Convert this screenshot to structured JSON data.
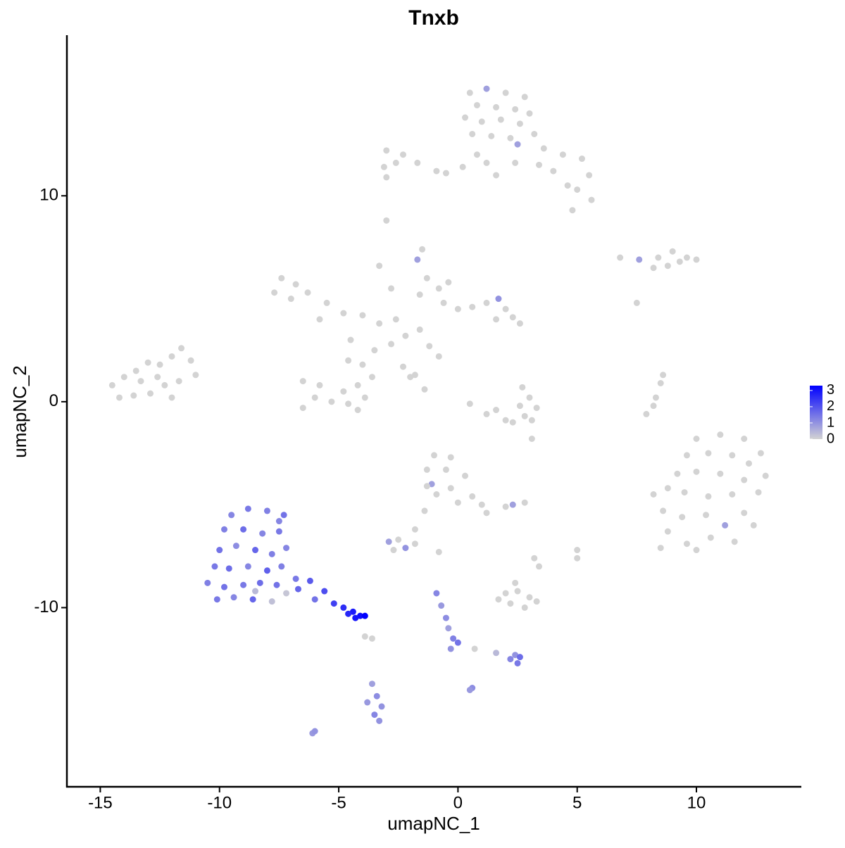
{
  "chart_data": {
    "type": "scatter",
    "title": "Tnxb",
    "x_label": "umapNC_1",
    "y_label": "umapNC_2",
    "xlim": [
      -16.4,
      14.4
    ],
    "ylim": [
      -18.7,
      17.8
    ],
    "xticks": [
      -15,
      -10,
      -5,
      0,
      5,
      10
    ],
    "yticks": [
      -10,
      0,
      10
    ],
    "color_low": "#d3d3d3",
    "color_high": "#0000ff",
    "colorlim": [
      0,
      3.3
    ],
    "colorticks": [
      0,
      1,
      2,
      3
    ],
    "x": [
      0.5,
      1.2,
      2,
      2.8,
      0.8,
      1.6,
      2.4,
      3,
      0.3,
      1,
      1.8,
      2.6,
      0.6,
      1.4,
      2.2,
      3.2,
      3.6,
      4.4,
      5.2,
      5.5,
      5,
      5.6,
      4.6,
      4,
      3.4,
      4.8,
      0.8,
      0.2,
      -0.5,
      1.2,
      1.6,
      2.4,
      2.5,
      -3,
      -2.3,
      -3.1,
      -2.6,
      -1.7,
      -0.9,
      -3,
      -3,
      -1.5,
      -1.7,
      6.8,
      7.6,
      8.4,
      9,
      9.6,
      10,
      8.8,
      9.3,
      8.2,
      -7.4,
      -6.8,
      -7.7,
      -7,
      -6.3,
      -5.5,
      -4.8,
      -5.8,
      -4,
      -3.3,
      -2.6,
      -1.3,
      -0.8,
      -1.6,
      -0.6,
      0,
      0.6,
      1.2,
      1.7,
      2,
      2.3,
      2.6,
      1.6,
      -0.4,
      -2.8,
      -3.3,
      -4.5,
      -4.6,
      -4,
      -3.5,
      -2.8,
      -2.2,
      -1.6,
      -1.2,
      -0.8,
      -2,
      -6.5,
      -5.8,
      -6,
      -5.3,
      -6.5,
      -4.8,
      -4.2,
      -3.9,
      -4.6,
      -3.6,
      -4.2,
      -1.4,
      -1.8,
      -2.3,
      0.5,
      1.2,
      2,
      2.8,
      3.3,
      3,
      2.6,
      1.6,
      3.1,
      2.3,
      3.1,
      2.7,
      -14.5,
      -14,
      -13.5,
      -13,
      -12.5,
      -12,
      -11.6,
      -11,
      -11.7,
      -12.3,
      -12.9,
      -13.6,
      -14.2,
      -13.3,
      -12.6,
      -11.2,
      -12,
      8.5,
      8.3,
      7.9,
      8.2,
      7.5,
      8.6,
      10,
      11,
      12,
      12.7,
      9.6,
      10.5,
      11.5,
      12.2,
      9.2,
      10,
      11,
      12,
      12.9,
      8.2,
      8.8,
      9.5,
      10.5,
      11.5,
      12.6,
      8.6,
      9.4,
      10.4,
      11.2,
      12,
      12.4,
      8.8,
      9.6,
      10.6,
      11.6,
      8.5,
      10,
      -1,
      -0.3,
      -1.3,
      -0.5,
      -1.1,
      -0.3,
      0.3,
      0.6,
      1,
      1.2,
      -0.9,
      0,
      -1.3,
      -1.4,
      -1.8,
      2.3,
      2.8,
      2,
      -2.9,
      -2.5,
      -2.2,
      -2.7,
      -1.8,
      -0.8,
      3.2,
      5,
      5,
      3.4,
      2,
      2.5,
      3,
      2.2,
      2.8,
      1.7,
      2.4,
      3.3,
      -9.5,
      -8.8,
      -8,
      -7.3,
      -9.8,
      -9,
      -8.2,
      -7.5,
      -10,
      -9.3,
      -8.5,
      -7.8,
      -7.2,
      -10.2,
      -9.6,
      -8.8,
      -8,
      -7.4,
      -10.5,
      -9.8,
      -9,
      -8.3,
      -7.6,
      -10.1,
      -9.4,
      -8.6,
      -7.8,
      -7.2,
      -6.7,
      -6.2,
      -5.6,
      -5.2,
      -6,
      -4.8,
      -4.4,
      -4.1,
      -3.9,
      -4.3,
      -4.6,
      -7.5,
      -8.5,
      -6.8,
      -3.9,
      -3.6,
      -0.9,
      -0.7,
      -0.5,
      -0.4,
      -0.2,
      -0.3,
      0,
      0.7,
      1.6,
      2.2,
      2.5,
      2.4,
      2.6,
      -3.6,
      -3.4,
      -3.2,
      -3.5,
      -3.8,
      -3.3,
      0.6,
      0.5,
      -6.1,
      -6
    ],
    "y": [
      15,
      15.2,
      15,
      14.8,
      14.4,
      14.3,
      14.2,
      14,
      13.8,
      13.6,
      13.7,
      13.5,
      13,
      12.9,
      12.8,
      13,
      12.3,
      12,
      11.8,
      11,
      10.3,
      9.8,
      10.5,
      11.2,
      11.5,
      9.3,
      12,
      11.4,
      11.1,
      11.6,
      11,
      11.6,
      12.5,
      12.2,
      12,
      11.4,
      11.6,
      11.6,
      11.2,
      10.9,
      8.8,
      7.4,
      6.9,
      7,
      6.9,
      7,
      7.3,
      7,
      6.9,
      6.6,
      6.8,
      6.5,
      6,
      5.7,
      5.3,
      5,
      5.3,
      4.8,
      4.3,
      4,
      4.2,
      3.8,
      4,
      6,
      5.5,
      5.2,
      4.8,
      4.5,
      4.6,
      4.8,
      5,
      4.5,
      4.1,
      3.8,
      4,
      5.8,
      5.5,
      6.6,
      3,
      2,
      1.8,
      2.5,
      2.8,
      3.2,
      3.5,
      2.7,
      2.2,
      1.2,
      1,
      0.8,
      0.2,
      0,
      -0.3,
      0.5,
      0.8,
      0.2,
      -0.1,
      1.2,
      -0.4,
      0.6,
      1.3,
      1.7,
      -0.1,
      -0.6,
      -0.9,
      -0.7,
      -0.3,
      0.2,
      -0.2,
      -0.4,
      -0.9,
      -1,
      -1.8,
      0.7,
      0.8,
      1.2,
      1.5,
      1.9,
      1.8,
      2.2,
      2.6,
      1.3,
      1,
      0.8,
      0.4,
      0.3,
      0.2,
      1,
      1.2,
      2,
      0.2,
      0.9,
      0.2,
      -0.6,
      -0.2,
      4.8,
      1.3,
      -1.8,
      -1.6,
      -1.8,
      -2.5,
      -2.6,
      -2.5,
      -2.6,
      -3,
      -3.5,
      -3.4,
      -3.5,
      -3.8,
      -3.6,
      -4.5,
      -4.2,
      -4.4,
      -4.6,
      -4.5,
      -4.4,
      -5.3,
      -5.6,
      -5.5,
      -6,
      -5.4,
      -6,
      -6.3,
      -6.9,
      -6.6,
      -6.8,
      -7.1,
      -7.2,
      -2.6,
      -2.7,
      -3.3,
      -3.3,
      -4,
      -4.2,
      -3.6,
      -4.6,
      -5,
      -5.4,
      -4.5,
      -4.9,
      -4.1,
      -5.3,
      -6.2,
      -5,
      -4.9,
      -5.1,
      -6.8,
      -6.7,
      -7.1,
      -7.2,
      -6.9,
      -7.3,
      -7.6,
      -7.2,
      -7.6,
      -8,
      -9.3,
      -9.2,
      -9.5,
      -9.8,
      -10,
      -9.6,
      -8.8,
      -9.7,
      -5.5,
      -5.2,
      -5.3,
      -5.5,
      -6.2,
      -6.2,
      -6.4,
      -6.3,
      -7.2,
      -7,
      -7.2,
      -7.4,
      -7.1,
      -8,
      -8.1,
      -8,
      -8.2,
      -8,
      -8.8,
      -9,
      -8.9,
      -8.8,
      -8.9,
      -9.6,
      -9.5,
      -9.6,
      -9.7,
      -9.3,
      -9.1,
      -8.7,
      -9.2,
      -9.8,
      -9.6,
      -10,
      -10.2,
      -10.4,
      -10.4,
      -10.5,
      -10.3,
      -5.8,
      -9.2,
      -8.6,
      -11.4,
      -11.5,
      -9.3,
      -9.9,
      -10.5,
      -11,
      -11.5,
      -12,
      -11.7,
      -12,
      -12.2,
      -12.5,
      -12.7,
      -12.3,
      -12.4,
      -13.7,
      -14.3,
      -14.8,
      -15.2,
      -14.6,
      -15.5,
      -13.9,
      -14,
      -16.1,
      -16
    ],
    "values": [
      0,
      0.8,
      0,
      0,
      0,
      0,
      0,
      0,
      0,
      0,
      0,
      0,
      0,
      0,
      0,
      0,
      0,
      0,
      0,
      0,
      0,
      0,
      0,
      0,
      0,
      0,
      0,
      0,
      0,
      0,
      0,
      0,
      0.8,
      0,
      0,
      0,
      0,
      0,
      0,
      0,
      0,
      0,
      0.8,
      0,
      0.8,
      0,
      0,
      0,
      0,
      0,
      0,
      0,
      0,
      0,
      0,
      0,
      0,
      0,
      0,
      0,
      0,
      0,
      0,
      0,
      0,
      0,
      0,
      0,
      0,
      0,
      1,
      0,
      0,
      0,
      0,
      0,
      0,
      0,
      0,
      0,
      0,
      0,
      0,
      0,
      0,
      0,
      0,
      0,
      0,
      0,
      0,
      0,
      0,
      0,
      0,
      0,
      0,
      0,
      0,
      0,
      0,
      0,
      0,
      0,
      0,
      0,
      0,
      0,
      0,
      0,
      0,
      0,
      0,
      0,
      0,
      0,
      0,
      0,
      0,
      0,
      0,
      0,
      0,
      0,
      0,
      0,
      0,
      0,
      0,
      0,
      0,
      0,
      0,
      0,
      0,
      0,
      0,
      0,
      0,
      0,
      0,
      0,
      0,
      0,
      0,
      0,
      0,
      0,
      0,
      0,
      0,
      0,
      0,
      0,
      0,
      0,
      0,
      0,
      0,
      0.8,
      0,
      0,
      0,
      0,
      0,
      0,
      0,
      0,
      0,
      0,
      0,
      0,
      0.8,
      0,
      0,
      0,
      0,
      0,
      0,
      0,
      0,
      0,
      0,
      0.8,
      0,
      0,
      0.8,
      0,
      1,
      0,
      0,
      0,
      0,
      0,
      0,
      0,
      0,
      0,
      0,
      0,
      0,
      0,
      0,
      0,
      1.2,
      1.4,
      1.3,
      1.5,
      1.3,
      1.6,
      1.2,
      1.4,
      1.5,
      1.1,
      1.7,
      1.3,
      1.2,
      1.4,
      1.6,
      1.2,
      1.8,
      1.3,
      1.3,
      1.5,
      1.4,
      1.6,
      1.5,
      1.4,
      1.2,
      1.7,
      0.3,
      0.2,
      1.7,
      1.9,
      2.1,
      2.3,
      1.5,
      2.6,
      2.9,
      3.1,
      3.3,
      3,
      2.7,
      1.2,
      0.4,
      1.4,
      0,
      0,
      1.2,
      0.9,
      1.1,
      0.8,
      1.3,
      1,
      1.5,
      0,
      0.4,
      1.2,
      1.4,
      1,
      1.6,
      0.8,
      1.1,
      1,
      1.2,
      0.9,
      1,
      1.1,
      0.9,
      0.9,
      1
    ]
  }
}
